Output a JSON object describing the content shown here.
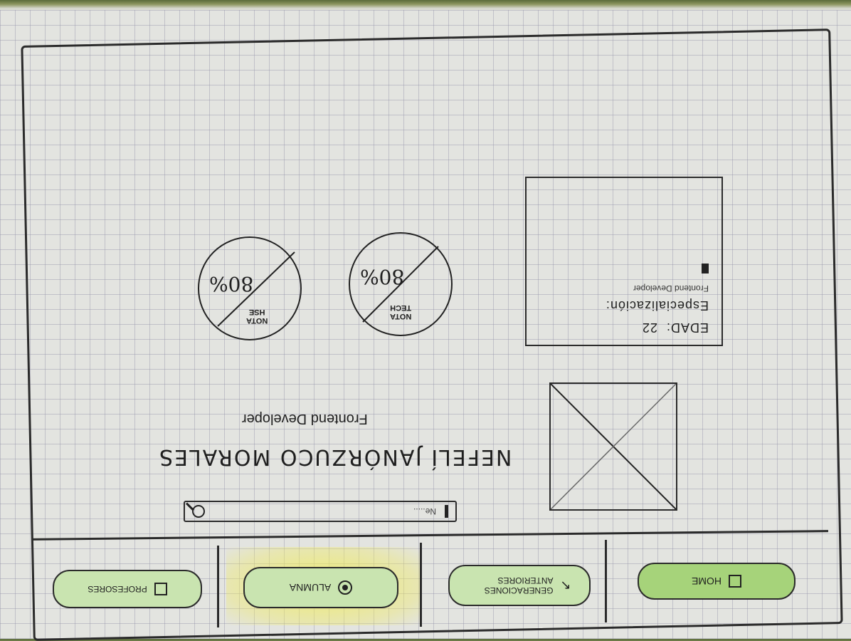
{
  "tabs": [
    {
      "label": "HOME",
      "icon": "bag-icon",
      "color": "#a6d37a"
    },
    {
      "label": "GENERACIONES ANTERIORES",
      "icon": "back-arrow-icon",
      "color": "#c9e4b0"
    },
    {
      "label": "ALUMNA",
      "icon": "radio-icon",
      "color": "#c9e4b0",
      "active": true
    },
    {
      "label": "PROFESORES",
      "icon": "x-box-icon",
      "color": "#c9e4b0"
    }
  ],
  "active_tab_highlight": "#f0eb5a",
  "search": {
    "placeholder": "Ne....."
  },
  "profile": {
    "name": "NEFELÍ JANÓRZUCO MORALES",
    "role": "Frontend Developer"
  },
  "info": {
    "age_label": "EDAD:",
    "age_value": "22",
    "specialization_label": "Especialización:",
    "specialization_value": "Frontend Developer"
  },
  "scores": [
    {
      "label_top": "NOTA",
      "label_bottom": "TECH",
      "percent": "80%",
      "fraction": 0.8
    },
    {
      "label_top": "NOTA",
      "label_bottom": "HSE",
      "percent": "80%",
      "fraction": 0.8
    }
  ]
}
